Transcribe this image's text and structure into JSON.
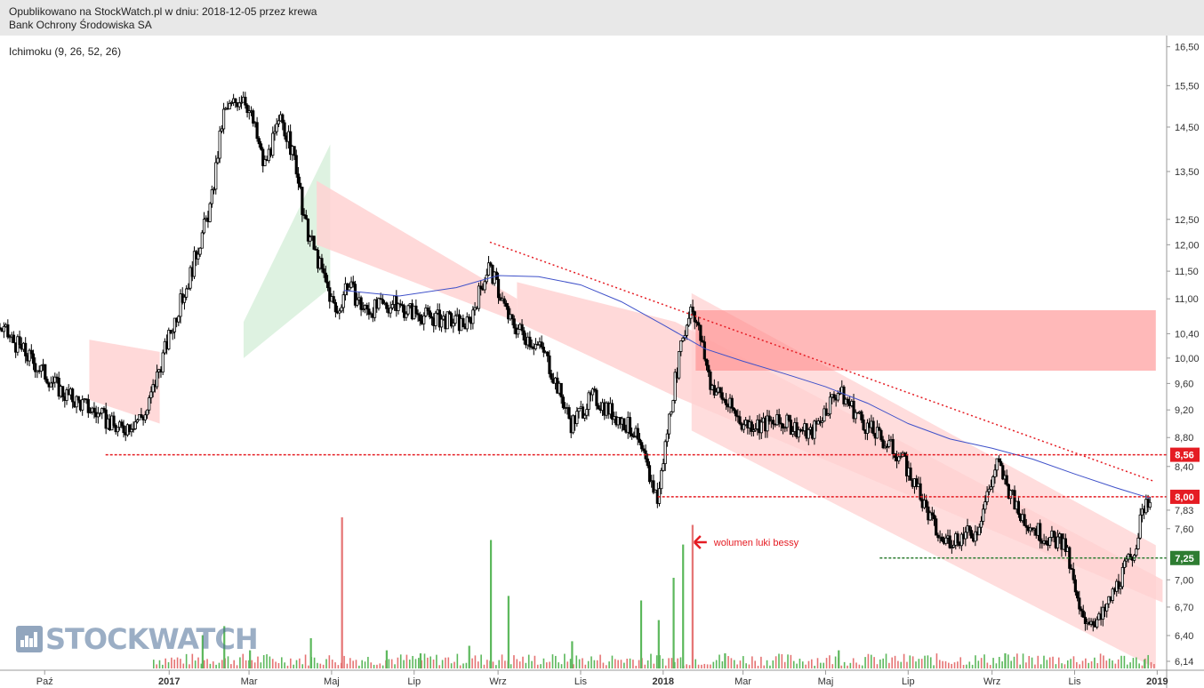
{
  "header": {
    "line1": "Opublikowano na StockWatch.pl w dniu: 2018-12-05 przez krewa",
    "line2": "Bank Ochrony Środowiska SA"
  },
  "indicator_label": "Ichimoku (9, 26, 52, 26)",
  "annotation": "wolumen luki bessy",
  "logo_text": "STOCKWATCH",
  "colors": {
    "candle": "#000000",
    "cloud_bull": "#d8f0dc",
    "cloud_bear": "#ffd2d2",
    "sma": "#3f51c9",
    "resistance": "#e51c23",
    "support": "#2e7d32",
    "vol_up": "#5cb85c",
    "vol_down": "#e57373",
    "zone": "#ff8a8a"
  },
  "chart_data": {
    "type": "candlestick",
    "x_ticks": [
      "Paź",
      "2017",
      "Mar",
      "Maj",
      "Lip",
      "Wrz",
      "Lis",
      "2018",
      "Mar",
      "Maj",
      "Lip",
      "Wrz",
      "Lis",
      "2019"
    ],
    "x_tick_dates": [
      "2016-10-01",
      "2017-01-01",
      "2017-03-01",
      "2017-05-01",
      "2017-07-01",
      "2017-09-01",
      "2017-11-01",
      "2018-01-01",
      "2018-03-01",
      "2018-05-01",
      "2018-07-01",
      "2018-09-01",
      "2018-11-01",
      "2019-01-01"
    ],
    "x_range": [
      "2016-08-29",
      "2019-01-08"
    ],
    "y_ticks": [
      "16,50",
      "15,50",
      "14,50",
      "13,50",
      "12,50",
      "12,00",
      "11,50",
      "11,00",
      "10,40",
      "10,00",
      "9,60",
      "9,20",
      "8,80",
      "8,40",
      "7,83",
      "7,60",
      "7,30",
      "7,00",
      "6,70",
      "6,40",
      "6,14"
    ],
    "y_tick_values": [
      16.5,
      15.5,
      14.5,
      13.5,
      12.5,
      12.0,
      11.5,
      11.0,
      10.4,
      10.0,
      9.6,
      9.2,
      8.8,
      8.4,
      7.83,
      7.6,
      7.3,
      7.0,
      6.7,
      6.4,
      6.14
    ],
    "y_range": [
      6.07,
      16.8
    ],
    "y_scale": "log",
    "price_path": [
      [
        "2016-08-29",
        10.5
      ],
      [
        "2016-09-20",
        10.0
      ],
      [
        "2016-10-15",
        9.45
      ],
      [
        "2016-11-05",
        9.2
      ],
      [
        "2016-11-25",
        8.9
      ],
      [
        "2016-12-15",
        9.15
      ],
      [
        "2017-01-03",
        10.5
      ],
      [
        "2017-01-15",
        11.3
      ],
      [
        "2017-02-01",
        12.8
      ],
      [
        "2017-02-10",
        14.8
      ],
      [
        "2017-02-25",
        15.3
      ],
      [
        "2017-03-05",
        14.5
      ],
      [
        "2017-03-12",
        13.6
      ],
      [
        "2017-03-25",
        14.7
      ],
      [
        "2017-04-05",
        13.6
      ],
      [
        "2017-04-10",
        12.5
      ],
      [
        "2017-04-25",
        11.4
      ],
      [
        "2017-05-05",
        10.7
      ],
      [
        "2017-05-12",
        11.3
      ],
      [
        "2017-05-25",
        10.8
      ],
      [
        "2017-06-15",
        10.9
      ],
      [
        "2017-07-10",
        10.7
      ],
      [
        "2017-08-10",
        10.55
      ],
      [
        "2017-08-25",
        11.6
      ],
      [
        "2017-09-10",
        10.6
      ],
      [
        "2017-10-05",
        10.1
      ],
      [
        "2017-10-25",
        9.0
      ],
      [
        "2017-11-10",
        9.4
      ],
      [
        "2017-12-10",
        8.9
      ],
      [
        "2017-12-28",
        7.95
      ],
      [
        "2018-01-10",
        9.7
      ],
      [
        "2018-01-22",
        10.95
      ],
      [
        "2018-02-05",
        9.6
      ],
      [
        "2018-03-01",
        9.0
      ],
      [
        "2018-04-01",
        9.0
      ],
      [
        "2018-04-20",
        8.85
      ],
      [
        "2018-05-10",
        9.5
      ],
      [
        "2018-06-01",
        8.95
      ],
      [
        "2018-06-25",
        8.55
      ],
      [
        "2018-07-10",
        8.0
      ],
      [
        "2018-07-25",
        7.45
      ],
      [
        "2018-08-20",
        7.55
      ],
      [
        "2018-09-05",
        8.45
      ],
      [
        "2018-09-20",
        7.8
      ],
      [
        "2018-10-10",
        7.5
      ],
      [
        "2018-10-25",
        7.4
      ],
      [
        "2018-11-05",
        6.6
      ],
      [
        "2018-11-20",
        6.55
      ],
      [
        "2018-12-01",
        6.9
      ],
      [
        "2018-12-15",
        7.35
      ],
      [
        "2018-12-24",
        8.0
      ],
      [
        "2018-12-27",
        7.95
      ]
    ],
    "sma_line": [
      [
        "2017-05-10",
        11.15
      ],
      [
        "2017-06-20",
        11.05
      ],
      [
        "2017-08-01",
        11.2
      ],
      [
        "2017-09-01",
        11.42
      ],
      [
        "2017-10-01",
        11.4
      ],
      [
        "2017-11-01",
        11.25
      ],
      [
        "2017-12-01",
        10.95
      ],
      [
        "2018-01-01",
        10.55
      ],
      [
        "2018-02-01",
        10.15
      ],
      [
        "2018-03-01",
        9.95
      ],
      [
        "2018-04-01",
        9.75
      ],
      [
        "2018-05-01",
        9.55
      ],
      [
        "2018-06-01",
        9.3
      ],
      [
        "2018-07-01",
        9.0
      ],
      [
        "2018-08-01",
        8.78
      ],
      [
        "2018-09-01",
        8.65
      ],
      [
        "2018-10-01",
        8.5
      ],
      [
        "2018-11-01",
        8.3
      ],
      [
        "2018-12-01",
        8.12
      ],
      [
        "2018-12-27",
        7.98
      ]
    ],
    "ichimoku_cloud": [
      {
        "trend": "bear",
        "from": "2016-11-03",
        "to": "2016-12-25",
        "top": [
          10.3,
          10.1
        ],
        "bottom": [
          9.35,
          9.0
        ]
      },
      {
        "trend": "bull",
        "from": "2017-02-25",
        "to": "2017-04-30",
        "top": [
          10.6,
          14.1
        ],
        "bottom": [
          10.0,
          11.2
        ]
      },
      {
        "trend": "bear",
        "from": "2017-04-20",
        "to": "2017-09-15",
        "top": [
          13.3,
          11.0
        ],
        "bottom": [
          12.0,
          10.6
        ]
      },
      {
        "trend": "bear",
        "from": "2017-09-15",
        "to": "2018-01-10",
        "top": [
          11.3,
          10.6
        ],
        "bottom": [
          10.6,
          9.4
        ]
      },
      {
        "trend": "bear",
        "from": "2018-01-10",
        "to": "2019-01-05",
        "top": [
          10.6,
          7.0
        ],
        "bottom": [
          9.4,
          6.75
        ]
      }
    ],
    "volume_bars": [
      [
        "2017-01-25",
        0.22
      ],
      [
        "2017-02-10",
        0.28
      ],
      [
        "2017-03-01",
        0.12
      ],
      [
        "2017-04-15",
        0.2
      ],
      [
        "2017-05-08",
        1.0
      ],
      [
        "2017-06-10",
        0.12
      ],
      [
        "2017-07-05",
        0.1
      ],
      [
        "2017-08-10",
        0.15
      ],
      [
        "2017-08-26",
        0.85
      ],
      [
        "2017-09-08",
        0.48
      ],
      [
        "2017-10-25",
        0.18
      ],
      [
        "2017-12-15",
        0.45
      ],
      [
        "2017-12-28",
        0.32
      ],
      [
        "2018-01-08",
        0.6
      ],
      [
        "2018-01-15",
        0.82
      ],
      [
        "2018-01-22",
        0.95
      ],
      [
        "2018-02-15",
        0.1
      ],
      [
        "2018-05-10",
        0.12
      ],
      [
        "2018-09-10",
        0.1
      ],
      [
        "2018-12-22",
        0.06
      ]
    ],
    "volume_down_dates": [
      "2017-05-08",
      "2018-01-22"
    ],
    "horizontal_levels": [
      {
        "value": 8.56,
        "label": "8,56",
        "from": "2016-11-15",
        "color": "red"
      },
      {
        "value": 8.0,
        "label": "8,00",
        "from": "2017-12-28",
        "color": "red"
      },
      {
        "value": 7.25,
        "label": "7,25",
        "from": "2018-06-10",
        "color": "green"
      }
    ],
    "trendline": {
      "from": [
        "2017-08-26",
        12.05
      ],
      "to": [
        "2018-12-30",
        8.2
      ]
    },
    "resistance_zone": {
      "from": "2018-01-25",
      "to": "2018-12-31",
      "top": 10.8,
      "bottom": 9.8
    },
    "channel": {
      "upper": [
        [
          "2018-01-22",
          11.1
        ],
        [
          "2018-12-31",
          7.4
        ]
      ],
      "lower": [
        [
          "2018-01-22",
          8.9
        ],
        [
          "2018-12-31",
          6.07
        ]
      ]
    }
  }
}
